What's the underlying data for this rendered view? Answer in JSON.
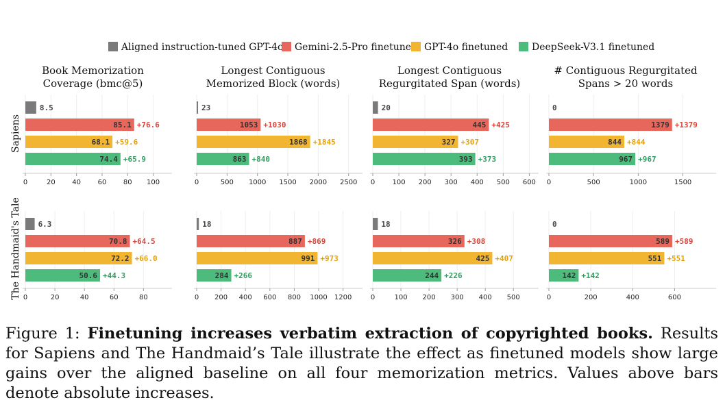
{
  "legend": [
    {
      "name": "Aligned instruction-tuned GPT-4o",
      "color": "#7a7a7a"
    },
    {
      "name": "Gemini-2.5-Pro finetuned",
      "color": "#e8675c"
    },
    {
      "name": "GPT-4o finetuned",
      "color": "#f1b531"
    },
    {
      "name": "DeepSeek-V3.1 finetuned",
      "color": "#4dbb7c"
    }
  ],
  "delta_colors": [
    "#d9473c",
    "#e3a20c",
    "#2f9e60"
  ],
  "column_titles": [
    [
      "Book Memorization",
      "Coverage (bmc@5)"
    ],
    [
      "Longest Contiguous",
      "Memorized Block (words)"
    ],
    [
      "Longest Contiguous",
      "Regurgitated Span (words)"
    ],
    [
      "# Contiguous Regurgitated",
      "Spans > 20 words"
    ]
  ],
  "row_labels": [
    "Sapiens",
    "The Handmaid's Tale"
  ],
  "chart_data": [
    {
      "type": "bar",
      "orientation": "horizontal",
      "book": "Sapiens",
      "metric": "Book Memorization Coverage (bmc@5)",
      "series": [
        "Aligned instruction-tuned GPT-4o",
        "Gemini-2.5-Pro finetuned",
        "GPT-4o finetuned",
        "DeepSeek-V3.1 finetuned"
      ],
      "values": [
        8.5,
        85.1,
        68.1,
        74.4
      ],
      "labels": [
        "8.5",
        "85.1",
        "68.1",
        "74.4"
      ],
      "deltas": [
        "+76.6",
        "+59.6",
        "+65.9"
      ],
      "xlim": [
        0,
        112
      ],
      "xticks": [
        0,
        20,
        40,
        60,
        80,
        100
      ]
    },
    {
      "type": "bar",
      "orientation": "horizontal",
      "book": "Sapiens",
      "metric": "Longest Contiguous Memorized Block (words)",
      "series": [
        "Aligned instruction-tuned GPT-4o",
        "Gemini-2.5-Pro finetuned",
        "GPT-4o finetuned",
        "DeepSeek-V3.1 finetuned"
      ],
      "values": [
        23,
        1053,
        1868,
        863
      ],
      "labels": [
        "23",
        "1053",
        "1868",
        "863"
      ],
      "deltas": [
        "+1030",
        "+1845",
        "+840"
      ],
      "xlim": [
        0,
        2650
      ],
      "xticks": [
        0,
        500,
        1000,
        1500,
        2000,
        2500
      ]
    },
    {
      "type": "bar",
      "orientation": "horizontal",
      "book": "Sapiens",
      "metric": "Longest Contiguous Regurgitated Span (words)",
      "series": [
        "Aligned instruction-tuned GPT-4o",
        "Gemini-2.5-Pro finetuned",
        "GPT-4o finetuned",
        "DeepSeek-V3.1 finetuned"
      ],
      "values": [
        20,
        445,
        327,
        393
      ],
      "labels": [
        "20",
        "445",
        "327",
        "393"
      ],
      "deltas": [
        "+425",
        "+307",
        "+373"
      ],
      "xlim": [
        0,
        620
      ],
      "xticks": [
        0,
        100,
        200,
        300,
        400,
        500,
        600
      ]
    },
    {
      "type": "bar",
      "orientation": "horizontal",
      "book": "Sapiens",
      "metric": "# Contiguous Regurgitated Spans > 20 words",
      "series": [
        "Aligned instruction-tuned GPT-4o",
        "Gemini-2.5-Pro finetuned",
        "GPT-4o finetuned",
        "DeepSeek-V3.1 finetuned"
      ],
      "values": [
        0,
        1379,
        844,
        967
      ],
      "labels": [
        "0",
        "1379",
        "844",
        "967"
      ],
      "deltas": [
        "+1379",
        "+844",
        "+967"
      ],
      "xlim": [
        0,
        1810
      ],
      "xticks": [
        0,
        500,
        1000,
        1500
      ]
    },
    {
      "type": "bar",
      "orientation": "horizontal",
      "book": "The Handmaid's Tale",
      "metric": "Book Memorization Coverage (bmc@5)",
      "series": [
        "Aligned instruction-tuned GPT-4o",
        "Gemini-2.5-Pro finetuned",
        "GPT-4o finetuned",
        "DeepSeek-V3.1 finetuned"
      ],
      "values": [
        6.3,
        70.8,
        72.2,
        50.6
      ],
      "labels": [
        "6.3",
        "70.8",
        "72.2",
        "50.6"
      ],
      "deltas": [
        "+64.5",
        "+66.0",
        "+44.3"
      ],
      "xlim": [
        0,
        97
      ],
      "xticks": [
        0,
        20,
        40,
        60,
        80
      ]
    },
    {
      "type": "bar",
      "orientation": "horizontal",
      "book": "The Handmaid's Tale",
      "metric": "Longest Contiguous Memorized Block (words)",
      "series": [
        "Aligned instruction-tuned GPT-4o",
        "Gemini-2.5-Pro finetuned",
        "GPT-4o finetuned",
        "DeepSeek-V3.1 finetuned"
      ],
      "values": [
        18,
        887,
        991,
        284
      ],
      "labels": [
        "18",
        "887",
        "991",
        "284"
      ],
      "deltas": [
        "+869",
        "+973",
        "+266"
      ],
      "xlim": [
        0,
        1320
      ],
      "xticks": [
        0,
        200,
        400,
        600,
        800,
        1000,
        1200
      ]
    },
    {
      "type": "bar",
      "orientation": "horizontal",
      "book": "The Handmaid's Tale",
      "metric": "Longest Contiguous Regurgitated Span (words)",
      "series": [
        "Aligned instruction-tuned GPT-4o",
        "Gemini-2.5-Pro finetuned",
        "GPT-4o finetuned",
        "DeepSeek-V3.1 finetuned"
      ],
      "values": [
        18,
        326,
        425,
        244
      ],
      "labels": [
        "18",
        "326",
        "425",
        "244"
      ],
      "deltas": [
        "+308",
        "+407",
        "+226"
      ],
      "xlim": [
        0,
        575
      ],
      "xticks": [
        0,
        100,
        200,
        300,
        400,
        500
      ]
    },
    {
      "type": "bar",
      "orientation": "horizontal",
      "book": "The Handmaid's Tale",
      "metric": "# Contiguous Regurgitated Spans > 20 words",
      "series": [
        "Aligned instruction-tuned GPT-4o",
        "Gemini-2.5-Pro finetuned",
        "GPT-4o finetuned",
        "DeepSeek-V3.1 finetuned"
      ],
      "values": [
        0,
        589,
        551,
        142
      ],
      "labels": [
        "0",
        "589",
        "551",
        "142"
      ],
      "deltas": [
        "+589",
        "+551",
        "+142"
      ],
      "xlim": [
        0,
        772
      ],
      "xticks": [
        0,
        200,
        400,
        600
      ]
    }
  ],
  "caption": {
    "prefix": "Figure 1: ",
    "bold": "Finetuning increases verbatim extraction of copyrighted books.",
    "rest": " Results for Sapiens and The Handmaid’s Tale illustrate the effect as finetuned models show large gains over the aligned baseline on all four memorization metrics. Values above bars denote absolute increases."
  }
}
